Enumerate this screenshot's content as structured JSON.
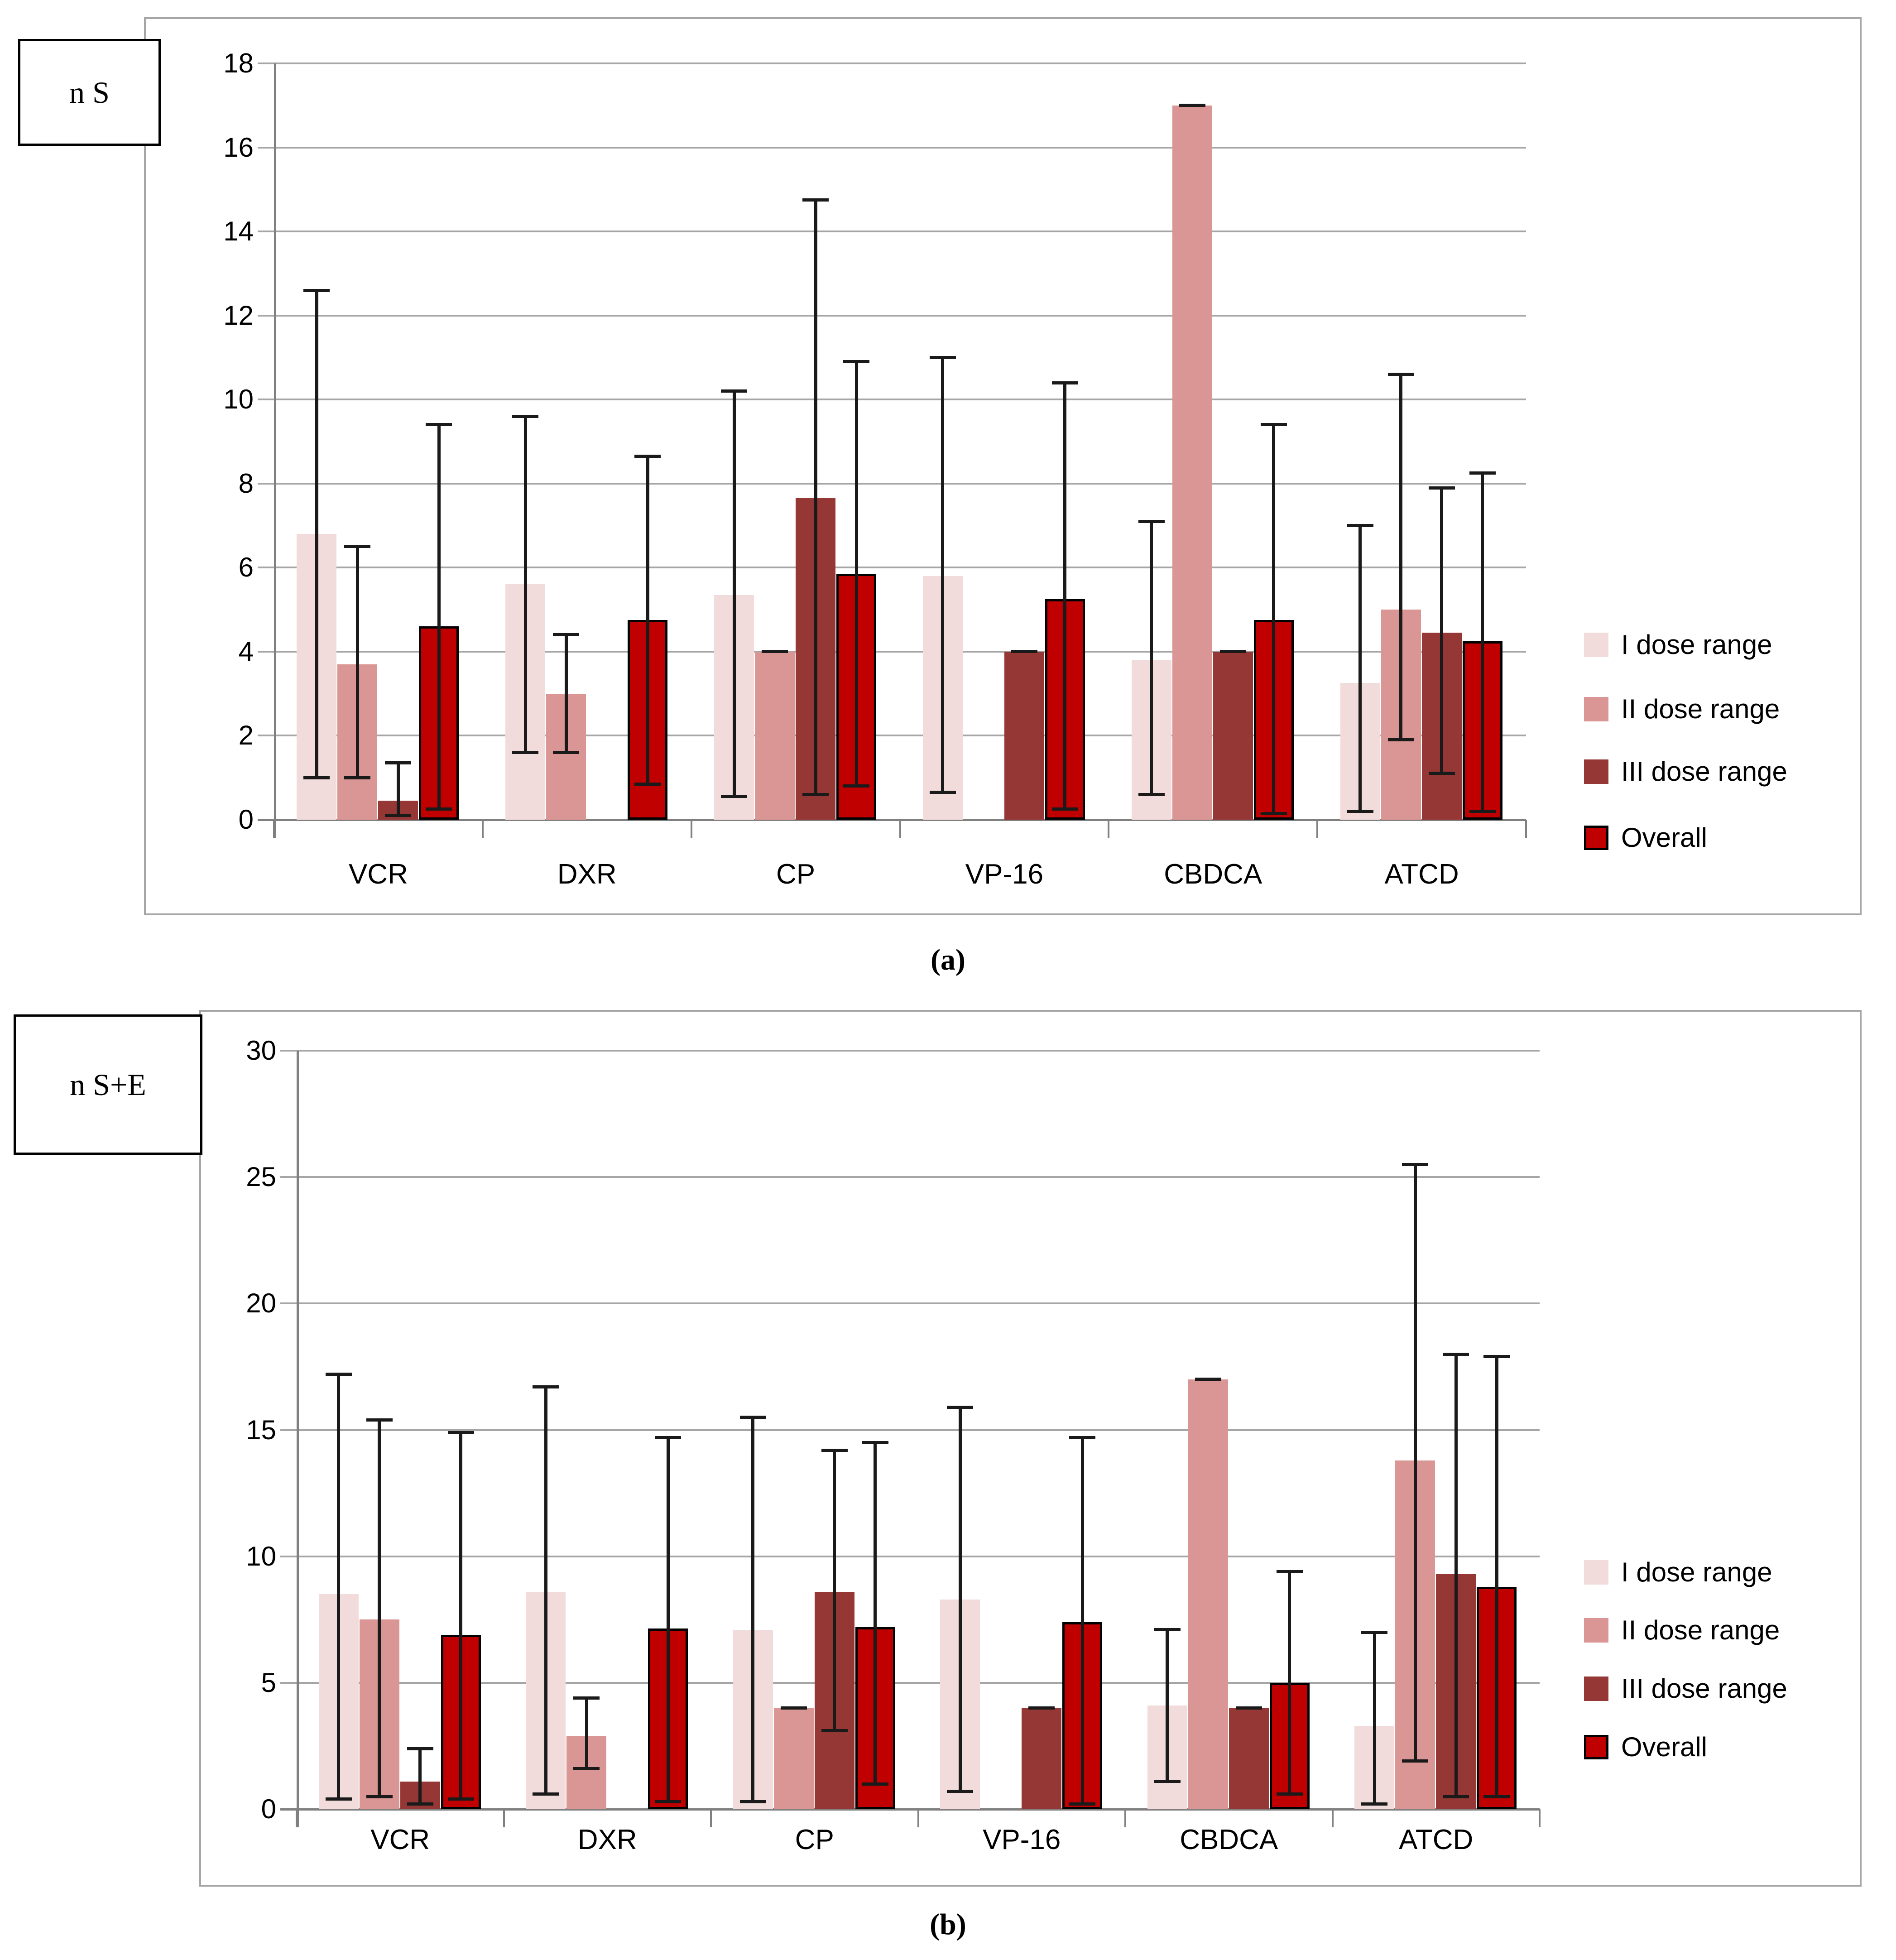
{
  "page": {
    "background": "#ffffff"
  },
  "colors": {
    "series_I": "#f2dcdb",
    "series_II": "#d99694",
    "series_III": "#953735",
    "series_overall": "#c00000",
    "overall_border": "#000000",
    "error_bar": "#1a1a1a",
    "gridline": "#a6a6a6",
    "axis": "#808080",
    "frame": "#a6a6a6"
  },
  "chart_data": [
    {
      "id": "a",
      "type": "bar",
      "axis_box_label": "n S",
      "caption": "(a)",
      "categories": [
        "VCR",
        "DXR",
        "CP",
        "VP-16",
        "CBDCA",
        "ATCD"
      ],
      "ylim": [
        0,
        18
      ],
      "ytick_step": 2,
      "grid": true,
      "legend_position": "right",
      "legend_labels": [
        "I dose range",
        "II dose range",
        "III dose range",
        "Overall"
      ],
      "series": [
        {
          "name": "I dose range",
          "color": "#f2dcdb",
          "values": [
            6.8,
            5.6,
            5.35,
            5.8,
            3.8,
            3.25
          ],
          "errors": [
            [
              1.0,
              12.6
            ],
            [
              1.6,
              9.6
            ],
            [
              0.55,
              10.2
            ],
            [
              0.65,
              11.0
            ],
            [
              0.6,
              7.1
            ],
            [
              0.2,
              7.0
            ]
          ]
        },
        {
          "name": "II dose range",
          "color": "#d99694",
          "values": [
            3.7,
            3.0,
            4.0,
            null,
            17.0,
            5.0
          ],
          "errors": [
            [
              1.0,
              6.5
            ],
            [
              1.6,
              4.4
            ],
            [
              4.0,
              4.0
            ],
            null,
            [
              17.0,
              17.0
            ],
            [
              1.9,
              10.6
            ]
          ]
        },
        {
          "name": "III dose range",
          "color": "#953735",
          "values": [
            0.45,
            null,
            7.65,
            4.0,
            4.0,
            4.45
          ],
          "errors": [
            [
              0.1,
              1.35
            ],
            null,
            [
              0.6,
              14.75
            ],
            [
              4.0,
              4.0
            ],
            [
              4.0,
              4.0
            ],
            [
              1.1,
              7.9
            ]
          ]
        },
        {
          "name": "Overall",
          "color": "#c00000",
          "border": "#000000",
          "values": [
            4.6,
            4.75,
            5.85,
            5.25,
            4.75,
            4.25
          ],
          "errors": [
            [
              0.25,
              9.4
            ],
            [
              0.85,
              8.65
            ],
            [
              0.8,
              10.9
            ],
            [
              0.25,
              10.4
            ],
            [
              0.15,
              9.4
            ],
            [
              0.2,
              8.25
            ]
          ]
        }
      ]
    },
    {
      "id": "b",
      "type": "bar",
      "axis_box_label": "n S+E",
      "caption": "(b)",
      "categories": [
        "VCR",
        "DXR",
        "CP",
        "VP-16",
        "CBDCA",
        "ATCD"
      ],
      "ylim": [
        0,
        30
      ],
      "ytick_step": 5,
      "grid": true,
      "legend_position": "right",
      "legend_labels": [
        "I dose range",
        "II dose range",
        "III dose range",
        "Overall"
      ],
      "series": [
        {
          "name": "I dose range",
          "color": "#f2dcdb",
          "values": [
            8.5,
            8.6,
            7.1,
            8.3,
            4.1,
            3.3
          ],
          "errors": [
            [
              0.4,
              17.2
            ],
            [
              0.6,
              16.7
            ],
            [
              0.3,
              15.5
            ],
            [
              0.7,
              15.9
            ],
            [
              1.1,
              7.1
            ],
            [
              0.2,
              7.0
            ]
          ]
        },
        {
          "name": "II dose range",
          "color": "#d99694",
          "values": [
            7.5,
            2.9,
            4.0,
            null,
            17.0,
            13.8
          ],
          "errors": [
            [
              0.5,
              15.4
            ],
            [
              1.6,
              4.4
            ],
            [
              4.0,
              4.0
            ],
            null,
            [
              17.0,
              17.0
            ],
            [
              1.9,
              25.5
            ]
          ]
        },
        {
          "name": "III dose range",
          "color": "#953735",
          "values": [
            1.1,
            null,
            8.6,
            4.0,
            4.0,
            9.3
          ],
          "errors": [
            [
              0.2,
              2.4
            ],
            null,
            [
              3.1,
              14.2
            ],
            [
              4.0,
              4.0
            ],
            [
              4.0,
              4.0
            ],
            [
              0.5,
              18.0
            ]
          ]
        },
        {
          "name": "Overall",
          "color": "#c00000",
          "border": "#000000",
          "values": [
            6.9,
            7.15,
            7.2,
            7.4,
            5.0,
            8.8
          ],
          "errors": [
            [
              0.4,
              14.9
            ],
            [
              0.3,
              14.7
            ],
            [
              1.0,
              14.5
            ],
            [
              0.2,
              14.7
            ],
            [
              0.6,
              9.4
            ],
            [
              0.5,
              17.9
            ]
          ]
        }
      ]
    }
  ]
}
